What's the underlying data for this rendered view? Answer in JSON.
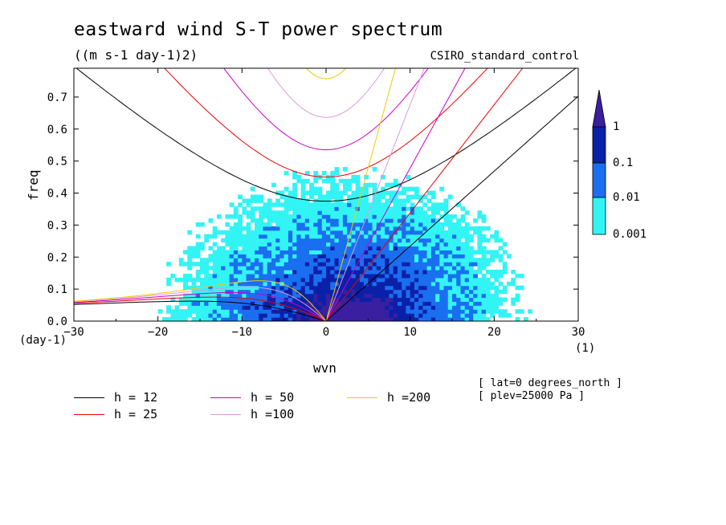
{
  "header": {
    "title": "eastward wind S-T power spectrum",
    "units": "((m s-1 day-1)2)",
    "model": "CSIRO_standard_control"
  },
  "annotations": {
    "lat": "[ lat=0 degrees_north ]",
    "plev": "[ plev=25000 Pa ]"
  },
  "colorbar": {
    "levels": [
      "1",
      "0.1",
      "0.01",
      "0.001"
    ],
    "colors": [
      "#3a1fa0",
      "#0b20a8",
      "#1a6ff0",
      "#33f4f4"
    ]
  },
  "chart_data": {
    "type": "heatmap",
    "title": "eastward wind S-T power spectrum",
    "subtitle": "((m s-1 day-1)2)",
    "xlabel": "wvn",
    "ylabel": "freq",
    "x_unit": "(1)",
    "y_unit": "(day-1)",
    "xlim": [
      -30,
      30
    ],
    "ylim": [
      0,
      0.79
    ],
    "x_ticks": [
      -30,
      -20,
      -10,
      0,
      10,
      20,
      30
    ],
    "y_ticks": [
      0.0,
      0.1,
      0.2,
      0.3,
      0.4,
      0.5,
      0.6,
      0.7
    ],
    "x_tick_labels": [
      "−30",
      "−20",
      "−10",
      "0",
      "10",
      "20",
      "30"
    ],
    "y_tick_labels": [
      "0.0",
      "0.1",
      "0.2",
      "0.3",
      "0.4",
      "0.5",
      "0.6",
      "0.7"
    ],
    "contour_levels": [
      0.001,
      0.01,
      0.1,
      1
    ],
    "power_regions": [
      {
        "level": 0.001,
        "note": "broad cyan field spanning wvn -30..30, freq 0..0.55; strongest near wvn 0..15, freq < 0.35"
      },
      {
        "level": 0.01,
        "note": "wvn -15..15, freq 0..0.22, concentrated around wvn 0..10"
      },
      {
        "level": 0.1,
        "note": "wvn -5..8, freq 0..0.08"
      }
    ],
    "series": [
      {
        "name": "h = 12",
        "color": "#000000"
      },
      {
        "name": "h = 25",
        "color": "#e80000"
      },
      {
        "name": "h = 50",
        "color": "#cc00cc"
      },
      {
        "name": "h =100",
        "color": "#dd99dd"
      },
      {
        "name": "h =200",
        "color": "#f0cc00"
      }
    ],
    "curve_families": [
      "Kelvin (eastward, from origin)",
      "n=1 inertia-gravity (U-shaped)",
      "equatorial Rossby (westward, low freq)"
    ],
    "grid": false,
    "legend_position": "below plot"
  }
}
